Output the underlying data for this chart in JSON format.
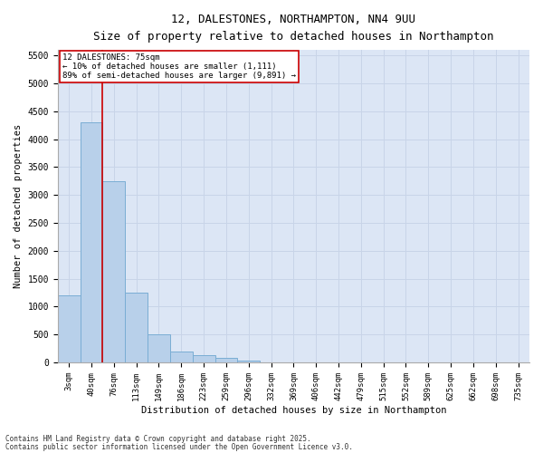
{
  "title_line1": "12, DALESTONES, NORTHAMPTON, NN4 9UU",
  "title_line2": "Size of property relative to detached houses in Northampton",
  "xlabel": "Distribution of detached houses by size in Northampton",
  "ylabel": "Number of detached properties",
  "annotation_title": "12 DALESTONES: 75sqm",
  "annotation_line2": "← 10% of detached houses are smaller (1,111)",
  "annotation_line3": "89% of semi-detached houses are larger (9,891) →",
  "footer_line1": "Contains HM Land Registry data © Crown copyright and database right 2025.",
  "footer_line2": "Contains public sector information licensed under the Open Government Licence v3.0.",
  "bar_color": "#b8d0ea",
  "bar_edge_color": "#7aadd4",
  "grid_color": "#c8d4e8",
  "background_color": "#dce6f5",
  "vline_color": "#cc0000",
  "annotation_box_color": "#cc0000",
  "categories": [
    "3sqm",
    "40sqm",
    "76sqm",
    "113sqm",
    "149sqm",
    "186sqm",
    "223sqm",
    "259sqm",
    "296sqm",
    "332sqm",
    "369sqm",
    "406sqm",
    "442sqm",
    "479sqm",
    "515sqm",
    "552sqm",
    "589sqm",
    "625sqm",
    "662sqm",
    "698sqm",
    "735sqm"
  ],
  "values": [
    1200,
    4300,
    3250,
    1250,
    500,
    190,
    130,
    80,
    40,
    0,
    0,
    0,
    0,
    0,
    0,
    0,
    0,
    0,
    0,
    0,
    0
  ],
  "ylim": [
    0,
    5600
  ],
  "yticks": [
    0,
    500,
    1000,
    1500,
    2000,
    2500,
    3000,
    3500,
    4000,
    4500,
    5000,
    5500
  ],
  "vline_x_index": 1.5,
  "figsize": [
    6.0,
    5.0
  ],
  "dpi": 100
}
